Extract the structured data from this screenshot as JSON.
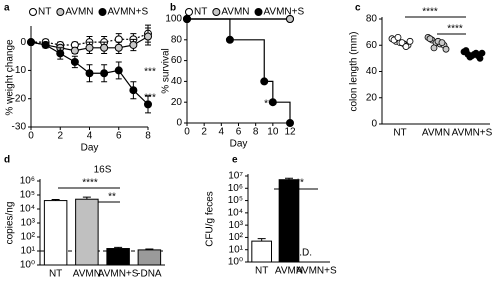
{
  "chart_data": [
    {
      "type": "line",
      "letter": "a",
      "ylabel": "% weight change",
      "xlabel": "Day",
      "x": [
        0,
        1,
        2,
        3,
        4,
        5,
        6,
        7,
        8
      ],
      "series": [
        {
          "name": "NT",
          "color": "#ffffff",
          "values": [
            0,
            0,
            -1,
            -1,
            0,
            0,
            1,
            1,
            3
          ],
          "errors": [
            0,
            1,
            1,
            1,
            2,
            2,
            2,
            2,
            3
          ]
        },
        {
          "name": "AVMN",
          "color": "#c8c8c8",
          "values": [
            0,
            -1,
            -2,
            -3,
            -2,
            -2,
            -2,
            -1,
            2
          ],
          "errors": [
            0,
            1,
            1,
            1,
            2,
            2,
            2,
            2,
            3
          ]
        },
        {
          "name": "AVMN+S",
          "color": "#000000",
          "values": [
            0,
            -1,
            -4,
            -7,
            -11,
            -11,
            -10,
            -17,
            -22
          ],
          "errors": [
            0,
            1,
            2,
            2,
            3,
            3,
            3,
            3,
            3
          ]
        }
      ],
      "xlim": [
        0,
        8
      ],
      "xticks": [
        0,
        2,
        4,
        6,
        8
      ],
      "ylim": [
        -30,
        5
      ],
      "yticks": [
        -30,
        -20,
        -10,
        0
      ],
      "annotations": [
        "***",
        "***"
      ]
    },
    {
      "type": "line",
      "step": true,
      "letter": "b",
      "ylabel": "% survival",
      "xlabel": "Day",
      "series": [
        {
          "name": "NT",
          "color": "#ffffff",
          "x": [
            0,
            12
          ],
          "values": [
            100,
            100
          ]
        },
        {
          "name": "AVMN",
          "color": "#c8c8c8",
          "x": [
            0,
            12
          ],
          "values": [
            100,
            100
          ]
        },
        {
          "name": "AVMN+S",
          "color": "#000000",
          "x": [
            0,
            5,
            9,
            10,
            12
          ],
          "values": [
            100,
            80,
            40,
            20,
            0
          ]
        }
      ],
      "xlim": [
        0,
        12
      ],
      "xticks": [
        0,
        2,
        4,
        6,
        8,
        10,
        12
      ],
      "ylim": [
        0,
        100
      ],
      "yticks": [
        0,
        20,
        40,
        60,
        80,
        100
      ],
      "annotations": [
        "***"
      ]
    },
    {
      "type": "strip",
      "letter": "c",
      "ylabel": "colon length (mm)",
      "categories": [
        "NT",
        "AVMN",
        "AVMN+S"
      ],
      "colors": [
        "#ffffff",
        "#c8c8c8",
        "#000000"
      ],
      "values": [
        [
          65,
          63,
          62,
          61,
          60,
          64,
          66,
          62,
          59,
          63
        ],
        [
          66,
          64,
          62,
          61,
          60,
          65,
          58,
          63,
          62,
          57
        ],
        [
          55,
          53,
          52,
          54,
          50,
          56,
          51,
          53,
          52,
          54
        ]
      ],
      "ylim": [
        0,
        80
      ],
      "yticks": [
        0,
        20,
        40,
        60,
        80
      ],
      "annotations": [
        "****",
        "****"
      ]
    },
    {
      "type": "bar",
      "log": true,
      "letter": "d",
      "title": "16S",
      "ylabel": "copies/ng",
      "categories": [
        "NT",
        "AVMN",
        "AVMN+S",
        "-DNA"
      ],
      "colors": [
        "#ffffff",
        "#c0c0c0",
        "#000000",
        "#9a9a9a"
      ],
      "values": [
        40000,
        50000,
        15,
        12
      ],
      "errors": [
        8000,
        20000,
        3,
        2
      ],
      "hline": 10,
      "ylim": [
        1,
        1000000
      ],
      "yticks": [
        {
          "value": 1,
          "label": "10⁰"
        },
        {
          "value": 10,
          "label": "10¹"
        },
        {
          "value": 100,
          "label": "10²"
        },
        {
          "value": 1000,
          "label": "10³"
        },
        {
          "value": 10000,
          "label": "10⁴"
        },
        {
          "value": 100000,
          "label": "10⁵"
        },
        {
          "value": 1000000,
          "label": "10⁶"
        }
      ],
      "annotations": [
        "****",
        "**"
      ]
    },
    {
      "type": "bar",
      "log": true,
      "letter": "e",
      "ylabel": "CFU/g feces",
      "categories": [
        "NT",
        "AVMN",
        "AVMN+S"
      ],
      "colors": [
        "#ffffff",
        "#000000",
        "#000000"
      ],
      "values": [
        50,
        5000000,
        null
      ],
      "errors": [
        30,
        1500000,
        null
      ],
      "ylim": [
        1,
        10000000
      ],
      "yticks": [
        {
          "value": 1,
          "label": "10⁰"
        },
        {
          "value": 10,
          "label": "10¹"
        },
        {
          "value": 100,
          "label": "10²"
        },
        {
          "value": 1000,
          "label": "10³"
        },
        {
          "value": 10000,
          "label": "10⁴"
        },
        {
          "value": 100000,
          "label": "10⁵"
        },
        {
          "value": 1000000,
          "label": "10⁶"
        },
        {
          "value": 10000000,
          "label": "10⁷"
        }
      ],
      "annotations": [
        "**",
        "N.D."
      ]
    }
  ]
}
